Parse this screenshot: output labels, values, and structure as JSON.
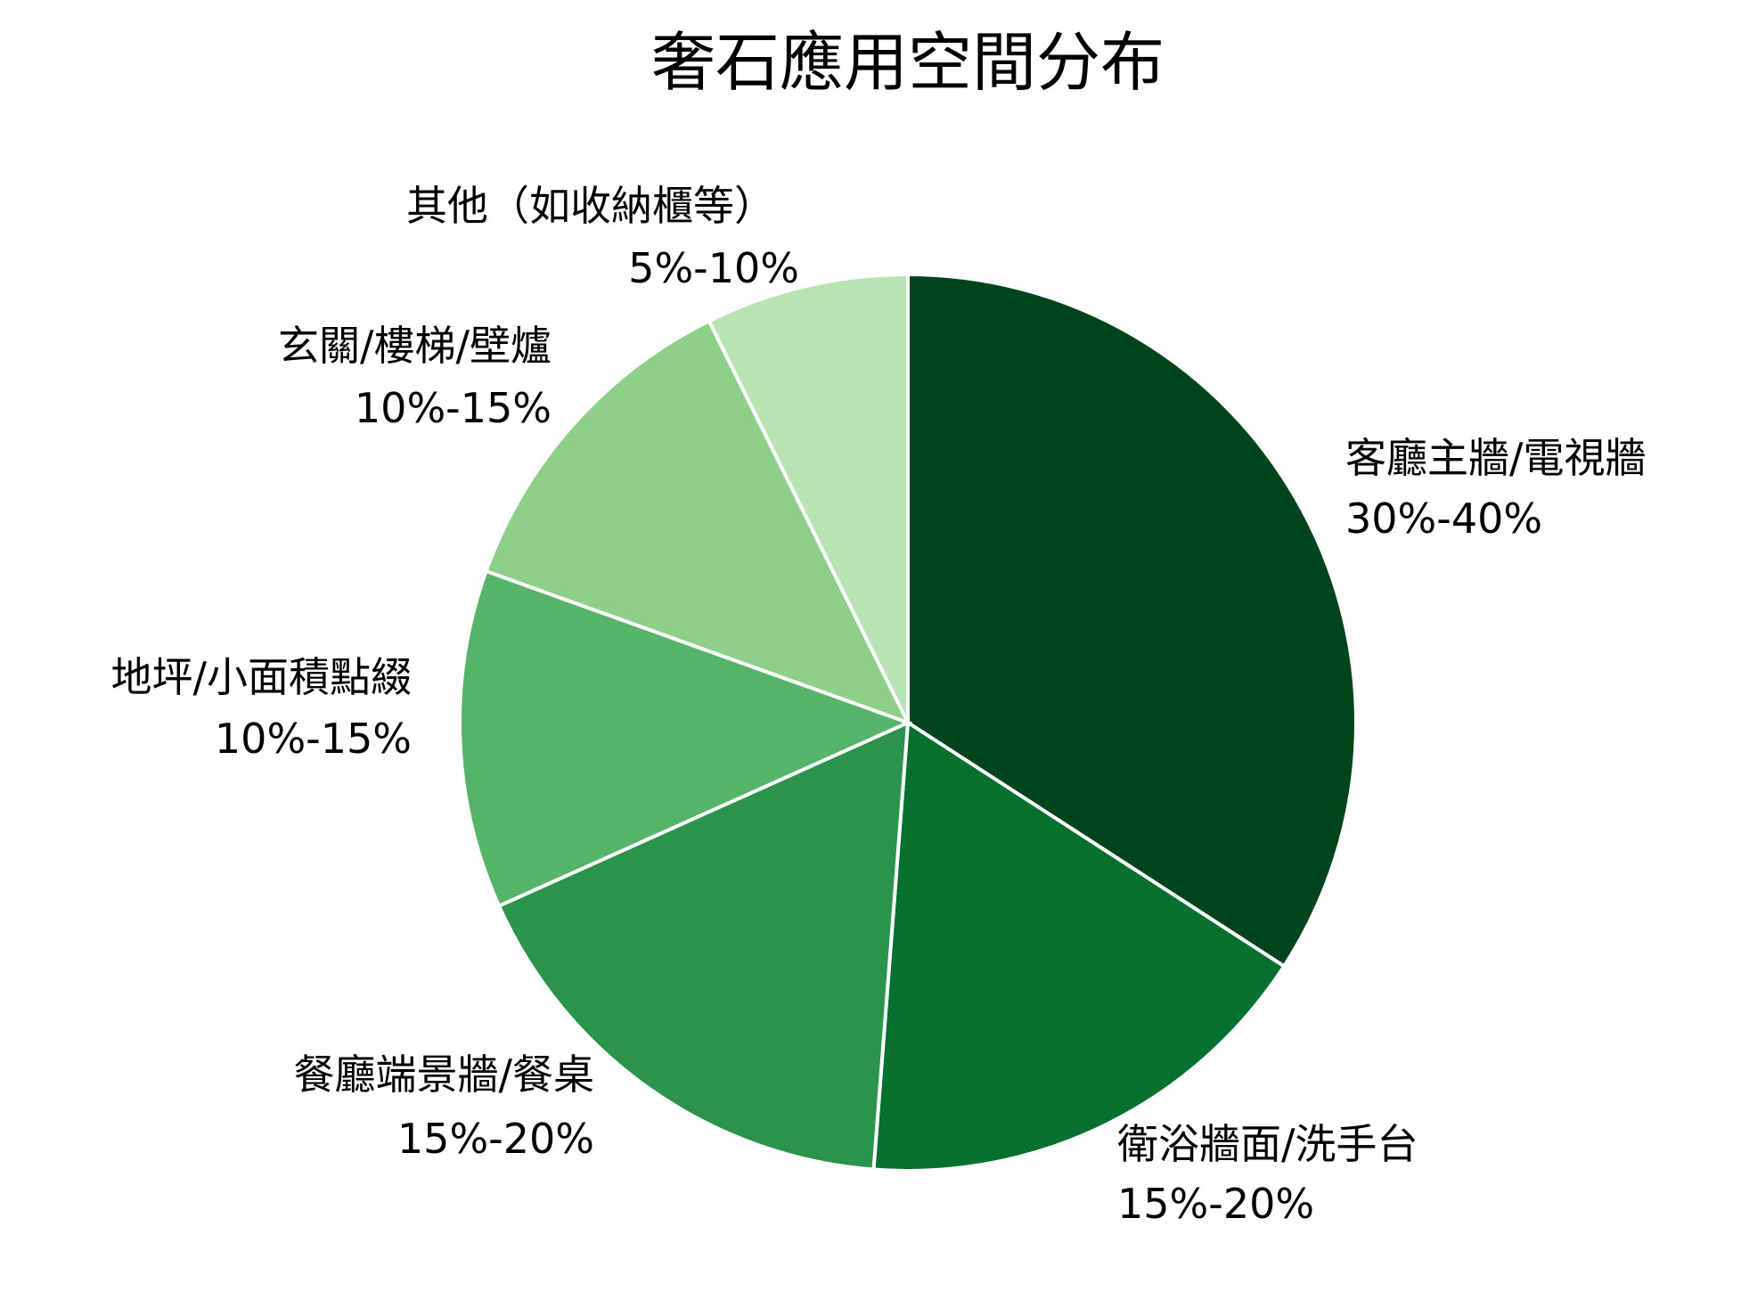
{
  "chart_data": {
    "type": "pie",
    "title": "奢石應用空間分布",
    "start": "top",
    "direction": "clockwise",
    "slices": [
      {
        "label": "客廳主牆/電視牆",
        "range": "30%-40%",
        "value": 35,
        "color": "#00441b"
      },
      {
        "label": "衛浴牆面/洗手台",
        "range": "15%-20%",
        "value": 17.5,
        "color": "#06712f"
      },
      {
        "label": "餐廳端景牆/餐桌",
        "range": "15%-20%",
        "value": 17.5,
        "color": "#2c934c"
      },
      {
        "label": "地坪/小面積點綴",
        "range": "10%-15%",
        "value": 12.5,
        "color": "#56b468"
      },
      {
        "label": "玄關/樓梯/壁爐",
        "range": "10%-15%",
        "value": 12.5,
        "color": "#8dce88"
      },
      {
        "label": "其他（如收納櫃等）",
        "range": "5%-10%",
        "value": 7.5,
        "color": "#b8e3b2"
      }
    ],
    "edge_color": "#ffffff"
  }
}
